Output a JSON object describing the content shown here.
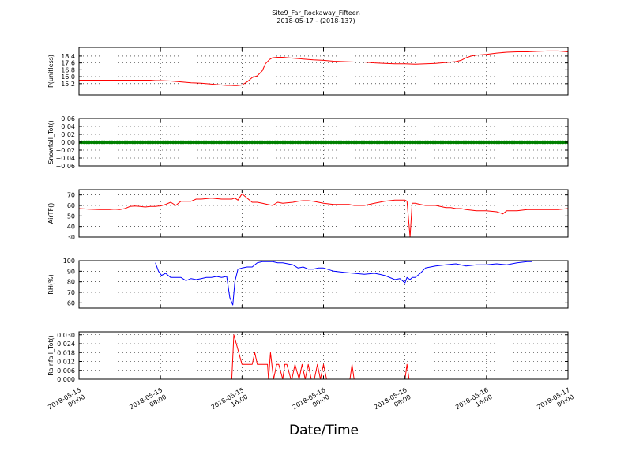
{
  "figure": {
    "title_line1": "Site9_Far_Rockaway_Fifteen",
    "title_line2": "2018-05-17 - (2018-137)",
    "xlabel": "Date/Time"
  },
  "x_ticks": [
    {
      "t": 0,
      "line1": "2018-05-15",
      "line2": "00:00"
    },
    {
      "t": 8,
      "line1": "2018-05-15",
      "line2": "08:00"
    },
    {
      "t": 16,
      "line1": "2018-05-15",
      "line2": "16:00"
    },
    {
      "t": 24,
      "line1": "2018-05-16",
      "line2": "00:00"
    },
    {
      "t": 32,
      "line1": "2018-05-16",
      "line2": "08:00"
    },
    {
      "t": 40,
      "line1": "2018-05-16",
      "line2": "16:00"
    },
    {
      "t": 48,
      "line1": "2018-05-17",
      "line2": "00:00"
    }
  ],
  "chart_data": [
    {
      "type": "line",
      "ylabel": "P(unitless)",
      "ylim": [
        13.9,
        19.4
      ],
      "yticks": [
        15.2,
        16.0,
        16.8,
        17.6,
        18.4
      ],
      "tick_labels": [
        "15.2",
        "16.0",
        "16.8",
        "17.6",
        "18.4"
      ],
      "grid": true,
      "xlim_hours": [
        0,
        48
      ],
      "color": "#ff0000",
      "x": [
        0,
        4,
        6,
        7,
        7.5,
        8,
        9,
        10,
        11,
        12,
        13,
        14,
        14.5,
        15,
        15.2,
        15.5,
        16,
        16.5,
        17,
        17.5,
        18,
        18.3,
        18.7,
        19,
        19.5,
        20,
        20.5,
        21,
        22,
        23,
        24,
        25,
        26,
        27,
        28,
        29,
        30,
        31,
        32,
        33,
        34,
        35,
        36,
        37,
        37.5,
        38,
        38.5,
        39,
        39.5,
        40,
        41,
        42,
        43,
        44,
        45,
        46,
        47,
        48
      ],
      "y": [
        15.6,
        15.6,
        15.6,
        15.6,
        15.55,
        15.55,
        15.5,
        15.4,
        15.3,
        15.25,
        15.15,
        15.05,
        15.0,
        15.0,
        14.97,
        14.97,
        15.05,
        15.4,
        15.9,
        16.1,
        16.7,
        17.5,
        18.0,
        18.2,
        18.25,
        18.25,
        18.2,
        18.15,
        18.05,
        17.95,
        17.9,
        17.8,
        17.75,
        17.7,
        17.7,
        17.6,
        17.55,
        17.5,
        17.5,
        17.45,
        17.5,
        17.55,
        17.65,
        17.75,
        17.9,
        18.2,
        18.4,
        18.5,
        18.55,
        18.6,
        18.75,
        18.85,
        18.9,
        18.9,
        18.95,
        19.0,
        19.0,
        18.9
      ]
    },
    {
      "type": "line",
      "ylabel": "Snowfall_Tot()",
      "ylim": [
        -0.06,
        0.06
      ],
      "yticks": [
        -0.06,
        -0.04,
        -0.02,
        0.0,
        0.02,
        0.04,
        0.06
      ],
      "tick_labels": [
        "−0.06",
        "−0.04",
        "−0.02",
        "0.00",
        "0.02",
        "0.04",
        "0.06"
      ],
      "grid": true,
      "xlim_hours": [
        0,
        48
      ],
      "color": "#008000",
      "marker": "circle",
      "constant_value": 0.0,
      "x_start": 0,
      "x_end": 48,
      "x_step": 0.25
    },
    {
      "type": "line",
      "ylabel": "AirTF()",
      "ylim": [
        30,
        75
      ],
      "yticks": [
        30,
        40,
        50,
        60,
        70
      ],
      "tick_labels": [
        "30",
        "40",
        "50",
        "60",
        "70"
      ],
      "grid": true,
      "xlim_hours": [
        0,
        48
      ],
      "color": "#ff0000",
      "x": [
        0,
        1,
        2,
        3,
        3.5,
        4,
        4.5,
        5,
        5.5,
        6,
        6.5,
        7,
        7.5,
        7.8,
        8,
        8.5,
        9,
        9.5,
        10,
        10.5,
        11,
        11.5,
        12,
        13,
        14,
        14.5,
        15,
        15.3,
        15.6,
        16,
        16.5,
        17,
        17.5,
        18,
        18.5,
        19,
        19.5,
        20,
        21,
        21.5,
        22,
        22.5,
        23,
        24,
        25,
        26,
        26.5,
        27,
        28,
        29,
        30,
        31,
        32,
        32.2,
        32.5,
        32.7,
        33,
        33.5,
        34,
        35,
        36,
        36.5,
        37,
        37.5,
        38,
        39,
        40,
        41,
        41.3,
        41.6,
        42,
        43,
        44,
        45,
        46,
        47,
        48
      ],
      "y": [
        57,
        56.5,
        56,
        56,
        56.5,
        56,
        57,
        59,
        59.5,
        59,
        58.5,
        59,
        59,
        59.5,
        59.5,
        61,
        63,
        60,
        64,
        64,
        64,
        66,
        66,
        67,
        66,
        66,
        66,
        67,
        65,
        71,
        67,
        63,
        63,
        62,
        61,
        60,
        63,
        62,
        63,
        64,
        64.5,
        64.5,
        64,
        62,
        61,
        61,
        61,
        60,
        60,
        62,
        64,
        65,
        65,
        64,
        30,
        62,
        62,
        61,
        60,
        60,
        58,
        58,
        57,
        57,
        56,
        55,
        55,
        54,
        53,
        52,
        55,
        55,
        56,
        56,
        56,
        56,
        57
      ]
    },
    {
      "type": "line",
      "ylabel": "RH(%)",
      "ylim": [
        55,
        100
      ],
      "yticks": [
        60,
        70,
        80,
        90,
        100
      ],
      "tick_labels": [
        "60",
        "70",
        "80",
        "90",
        "100"
      ],
      "grid": true,
      "xlim_hours": [
        0,
        48
      ],
      "color": "#0000ff",
      "x": [
        7.5,
        7.8,
        8.1,
        8.5,
        9,
        9.5,
        10,
        10.5,
        11,
        11.5,
        12,
        12.5,
        13,
        13.5,
        14,
        14.5,
        14.8,
        15.1,
        15.3,
        15.6,
        16,
        16.5,
        17,
        17.5,
        18,
        18.5,
        19,
        19.5,
        20,
        21,
        21.5,
        22,
        22.5,
        23,
        23.5,
        24,
        25,
        26,
        27,
        28,
        29,
        29.5,
        30,
        31,
        31.5,
        32,
        32.2,
        32.5,
        32.7,
        33,
        33.5,
        34,
        34.5,
        35,
        36,
        37,
        38,
        39,
        40,
        41,
        42,
        43,
        44,
        44.5
      ],
      "y": [
        98,
        90,
        86,
        88,
        84,
        84,
        84,
        81,
        83,
        82,
        83,
        84,
        84,
        85,
        84,
        85,
        65,
        58,
        80,
        92,
        93,
        94,
        94,
        98,
        99,
        99,
        99,
        98,
        98,
        96,
        93,
        94,
        92,
        92,
        93,
        93,
        90,
        89,
        88,
        87,
        88,
        87,
        86,
        82,
        83,
        79,
        84,
        82,
        84,
        84,
        88,
        93,
        94,
        95,
        96,
        97,
        95,
        96,
        96,
        97,
        96,
        98,
        99,
        99
      ]
    },
    {
      "type": "line",
      "ylabel": "Rainfall_Tot()",
      "ylim": [
        0.0,
        0.032
      ],
      "yticks": [
        0.0,
        0.006,
        0.012,
        0.018,
        0.024,
        0.03
      ],
      "tick_labels": [
        "0.000",
        "0.006",
        "0.012",
        "0.018",
        "0.024",
        "0.030"
      ],
      "grid": true,
      "xlim_hours": [
        0,
        48
      ],
      "color": "#ff0000",
      "x": [
        0,
        14.9,
        15.0,
        15.2,
        15.6,
        16.0,
        16.5,
        17.0,
        17.25,
        17.5,
        18.5,
        18.6,
        18.8,
        19.1,
        19.4,
        19.6,
        20.0,
        20.2,
        20.4,
        20.8,
        20.9,
        21.2,
        21.6,
        21.9,
        22.2,
        22.5,
        22.8,
        23.1,
        23.4,
        23.7,
        24.0,
        24.3,
        26.6,
        26.8,
        27.0,
        32.0,
        32.2,
        32.4,
        48
      ],
      "y": [
        0,
        0,
        0.0,
        0.03,
        0.02,
        0.01,
        0.01,
        0.01,
        0.018,
        0.01,
        0.01,
        0.0,
        0.018,
        0.0,
        0.01,
        0.01,
        0.0,
        0.01,
        0.01,
        0.0,
        0.0,
        0.01,
        0.0,
        0.01,
        0.0,
        0.01,
        0.0,
        0.0,
        0.01,
        0.0,
        0.01,
        0.0,
        0.0,
        0.01,
        0.0,
        0.0,
        0.01,
        0.0,
        0.0
      ]
    }
  ]
}
